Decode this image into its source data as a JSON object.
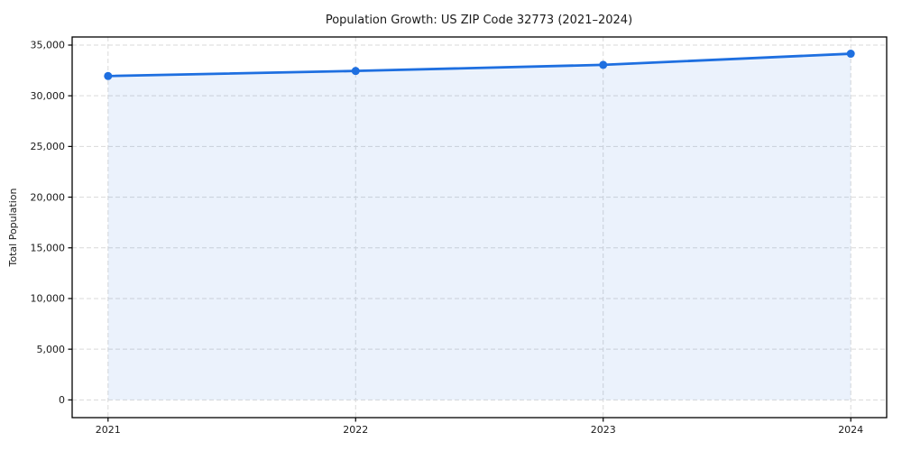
{
  "chart_data": {
    "type": "line",
    "title": "Population Growth: US ZIP Code 32773 (2021–2024)",
    "xlabel": "",
    "ylabel": "Total Population",
    "x": [
      2021,
      2022,
      2023,
      2024
    ],
    "x_tick_labels": [
      "2021",
      "2022",
      "2023",
      "2024"
    ],
    "series": [
      {
        "name": "Total Population",
        "values": [
          31950,
          32450,
          33050,
          34150
        ]
      }
    ],
    "y_ticks": [
      0,
      5000,
      10000,
      15000,
      20000,
      25000,
      30000,
      35000
    ],
    "axis_range": {
      "x": [
        2020.855,
        2024.145
      ],
      "y": [
        -1750,
        35800
      ]
    },
    "area_baseline": 0,
    "grid": {
      "show": true,
      "style": "dashed",
      "color": "#d9d9d9"
    },
    "line_color": "#1e6fe0",
    "area_fill_color": "#e9f0fc",
    "area_fill_opacity": 0.09,
    "marker": "circle",
    "legend": "none"
  }
}
